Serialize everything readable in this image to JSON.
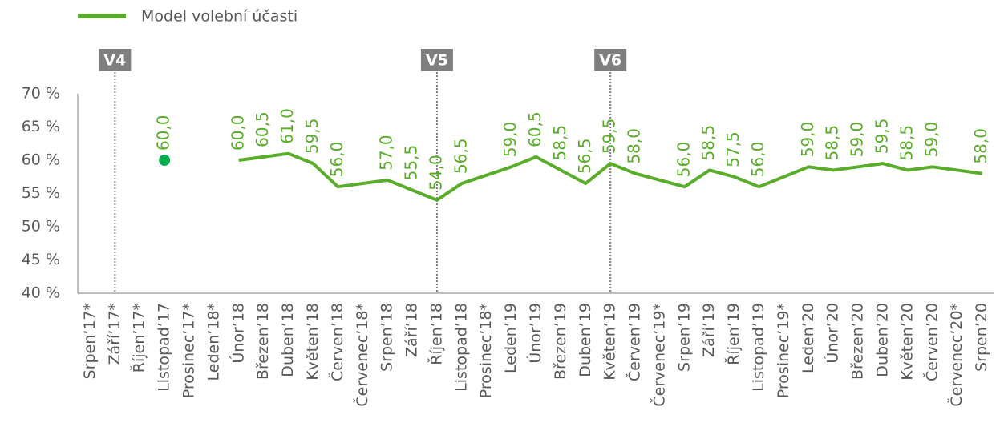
{
  "chart_data": {
    "type": "line",
    "categories": [
      "Srpen’17*",
      "Září’17*",
      "Říjen’17*",
      "Listopad’17",
      "Prosinec’17*",
      "Leden’18*",
      "Únor’18",
      "Březen’18",
      "Duben’18",
      "Květen’18",
      "Červen’18",
      "Červenec’18*",
      "Srpen’18",
      "Září’18",
      "Říjen’18",
      "Listopad’18",
      "Prosinec’18*",
      "Leden’19",
      "Únor’19",
      "Březen’19",
      "Duben’19",
      "Květen’19",
      "Červen’19",
      "Červenec’19*",
      "Srpen’19",
      "Září’19",
      "Říjen’19",
      "Listopad’19",
      "Prosinec’19*",
      "Leden’20",
      "Únor’20",
      "Březen’20",
      "Duben’20",
      "Květen’20",
      "Červen’20",
      "Červenec’20*",
      "Srpen’20"
    ],
    "series": [
      {
        "name": "Model volební účasti",
        "color": "#5aad2a",
        "marker_color": "#00b050",
        "values": [
          null,
          null,
          null,
          60.0,
          null,
          null,
          60.0,
          60.5,
          61.0,
          59.5,
          56.0,
          56.5,
          57.0,
          55.5,
          54.0,
          56.5,
          57.75,
          59.0,
          60.5,
          58.5,
          56.5,
          59.5,
          58.0,
          57.0,
          56.0,
          58.5,
          57.5,
          56.0,
          57.5,
          59.0,
          58.5,
          59.0,
          59.5,
          58.5,
          59.0,
          58.5,
          58.0
        ],
        "value_labels": [
          null,
          null,
          null,
          "60,0",
          null,
          null,
          "60,0",
          "60,5",
          "61,0",
          "59,5",
          "56,0",
          null,
          "57,0",
          "55,5",
          "54,0",
          "56,5",
          null,
          "59,0",
          "60,5",
          "58,5",
          "56,5",
          "59,5",
          "58,0",
          null,
          "56,0",
          "58,5",
          "57,5",
          "56,0",
          null,
          "59,0",
          "58,5",
          "59,0",
          "59,5",
          "58,5",
          "59,0",
          null,
          "58,0"
        ]
      }
    ],
    "ylim": [
      40,
      70
    ],
    "yticks": [
      {
        "value": 40,
        "label": "40 %"
      },
      {
        "value": 45,
        "label": "45 %"
      },
      {
        "value": 50,
        "label": "50 %"
      },
      {
        "value": 55,
        "label": "55 %"
      },
      {
        "value": 60,
        "label": "60 %"
      },
      {
        "value": 65,
        "label": "65 %"
      },
      {
        "value": 70,
        "label": "70 %"
      }
    ],
    "annotations": [
      {
        "label": "V4",
        "category": "Září’17*"
      },
      {
        "label": "V5",
        "category": "Říjen’18"
      },
      {
        "label": "V6",
        "category": "Květen’19"
      }
    ],
    "legend": "top-left"
  }
}
